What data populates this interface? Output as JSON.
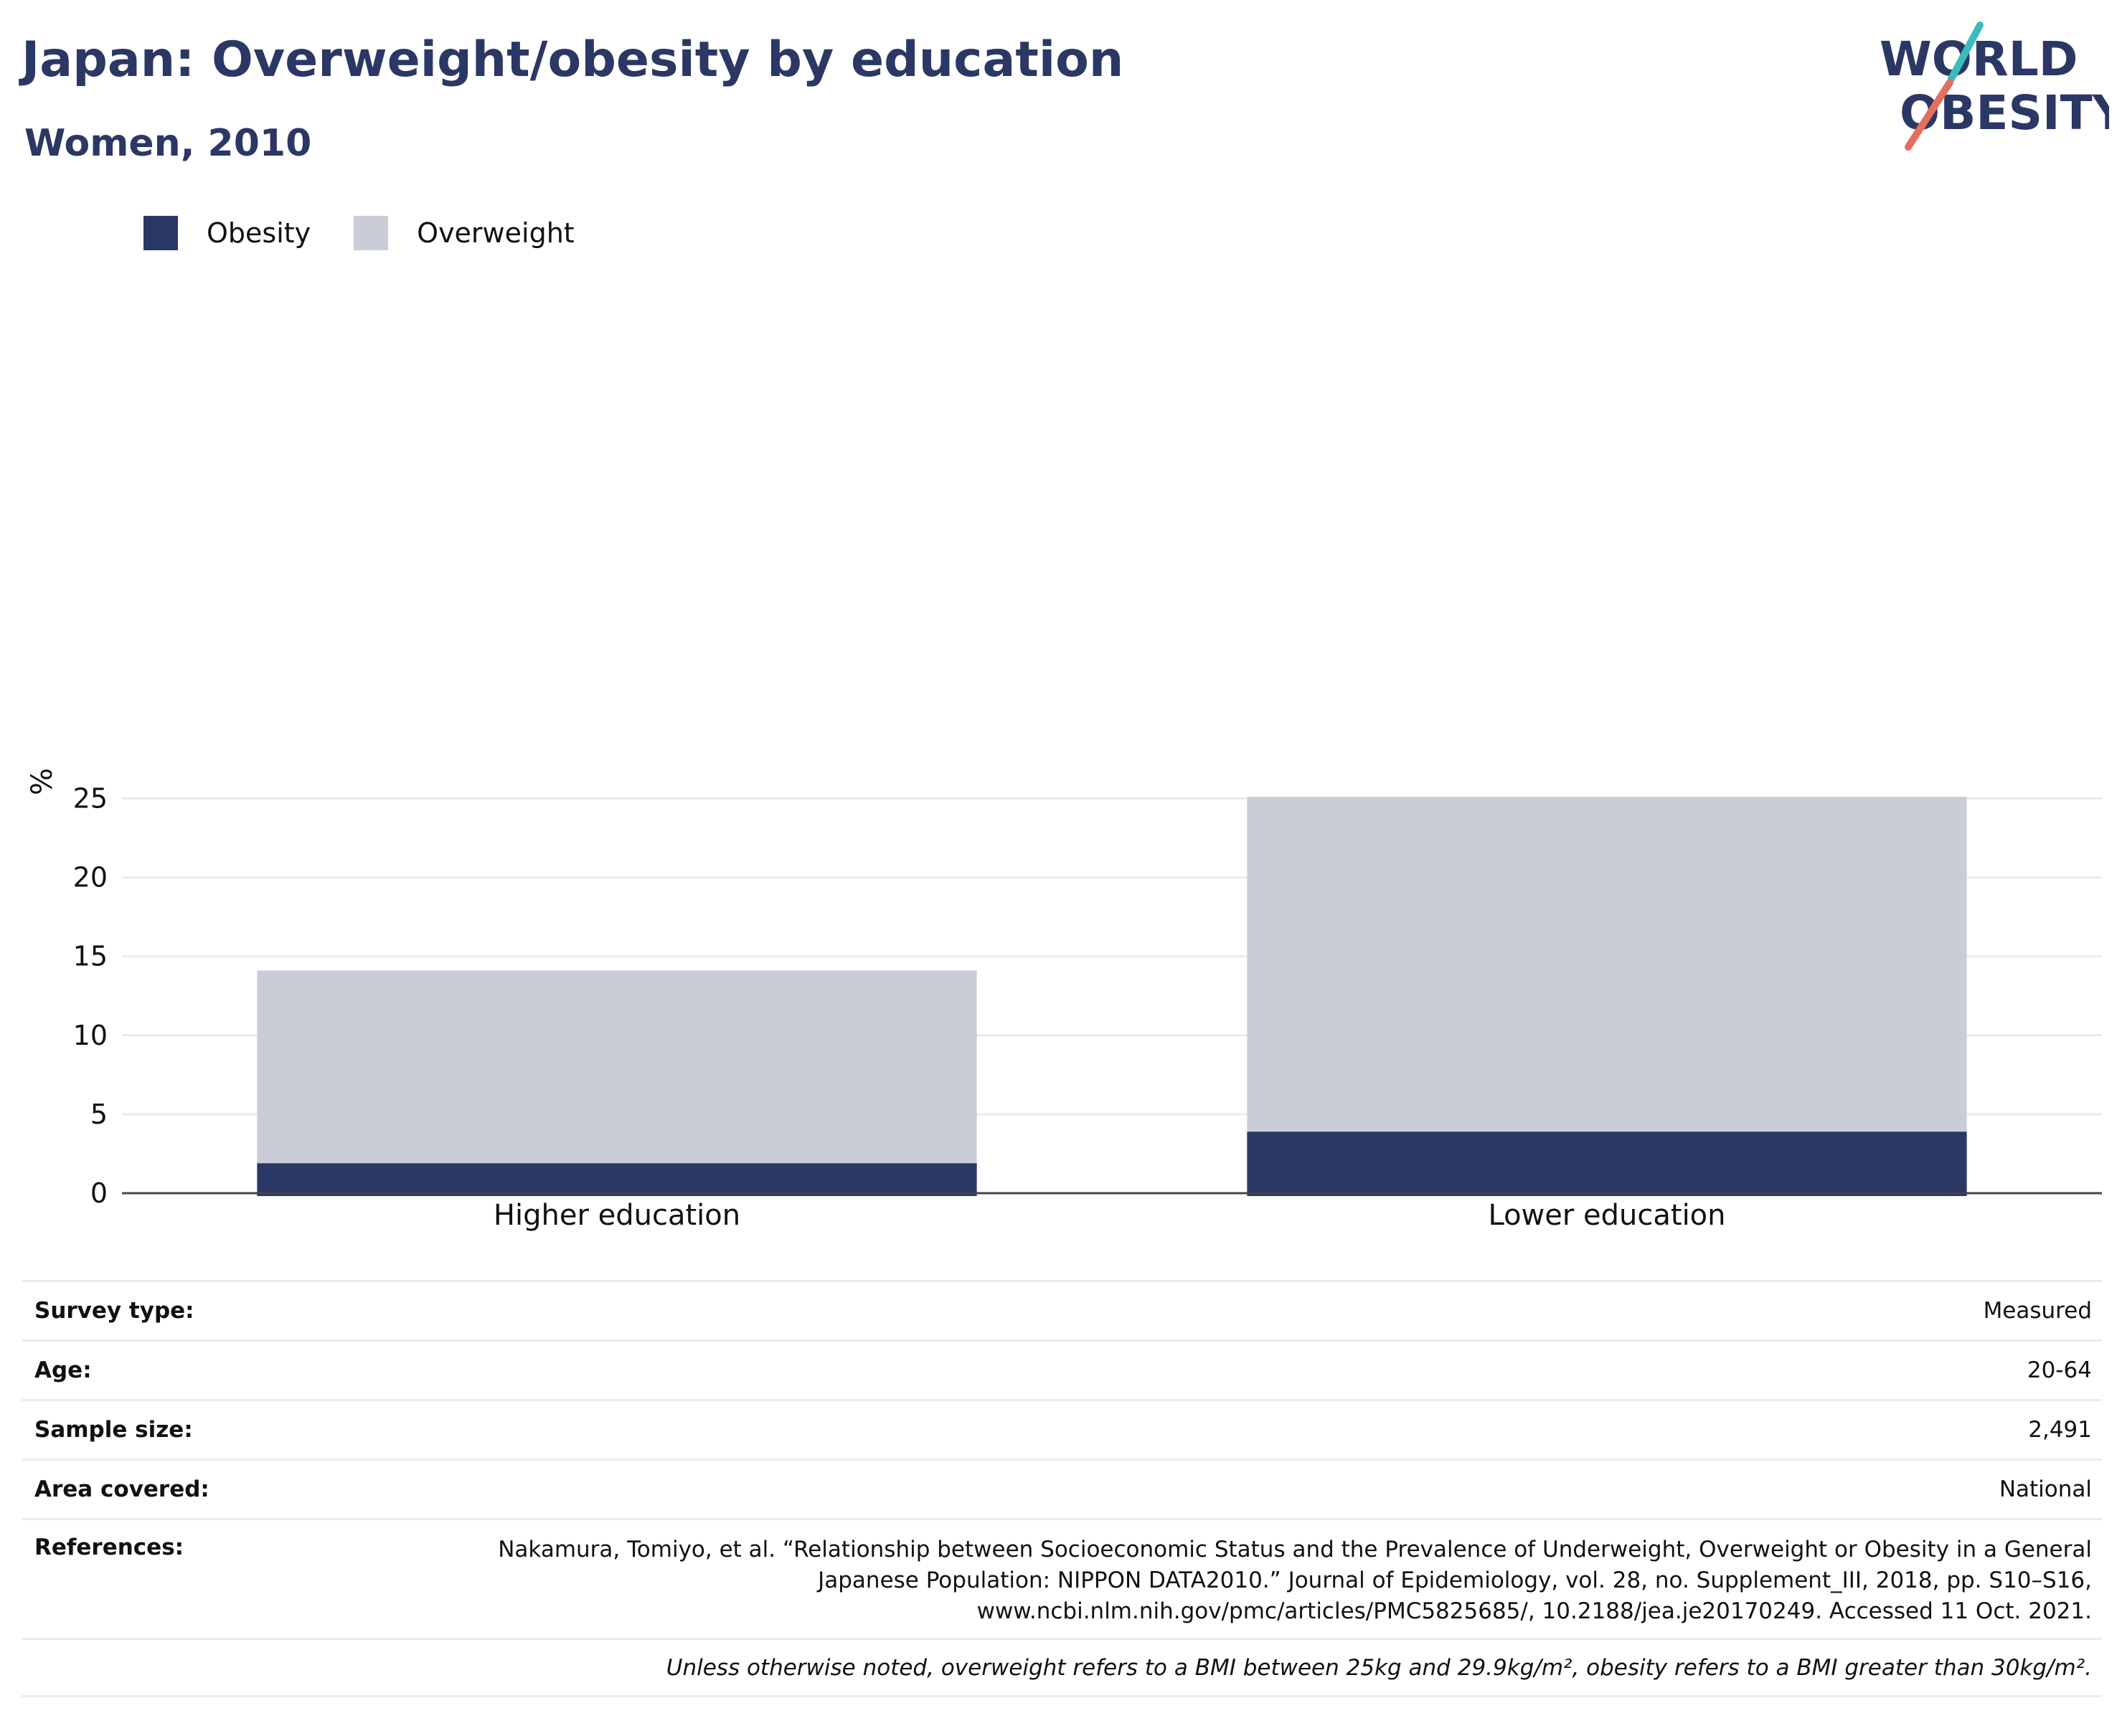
{
  "header": {
    "title": "Japan: Overweight/obesity by education",
    "subtitle": "Women, 2010"
  },
  "logo": {
    "line1": "WORLD",
    "line2": "OBESITY"
  },
  "legend": {
    "items": [
      {
        "label": "Obesity"
      },
      {
        "label": "Overweight"
      }
    ]
  },
  "colors": {
    "obesity": "#2b3764",
    "overweight": "#cacdd8",
    "logo_teal": "#3cbcbc",
    "logo_coral": "#e36f5c"
  },
  "chart_data": {
    "type": "bar",
    "stacked": true,
    "categories": [
      "Higher education",
      "Lower education"
    ],
    "series": [
      {
        "name": "Obesity",
        "values": [
          1.9,
          3.9
        ]
      },
      {
        "name": "Overweight",
        "values": [
          12.2,
          21.2
        ]
      }
    ],
    "ylabel": "%",
    "ylim": [
      0,
      27
    ],
    "yticks": [
      0,
      5,
      10,
      15,
      20,
      25
    ],
    "grid": true,
    "legend_position": "top-left"
  },
  "meta": {
    "survey_type": {
      "label": "Survey type:",
      "value": "Measured"
    },
    "age": {
      "label": "Age:",
      "value": "20-64"
    },
    "sample_size": {
      "label": "Sample size:",
      "value": "2,491"
    },
    "area": {
      "label": "Area covered:",
      "value": "National"
    },
    "references": {
      "label": "References:",
      "value": "Nakamura, Tomiyo, et al. “Relationship between Socioeconomic Status and the Prevalence of Underweight, Overweight or Obesity in a General Japanese Population: NIPPON DATA2010.” Journal of Epidemiology, vol. 28, no. Supplement_III, 2018, pp. S10–S16, www.ncbi.nlm.nih.gov/pmc/articles/PMC5825685/, 10.2188/jea.je20170249. Accessed 11 Oct. 2021."
    }
  },
  "footnote": "Unless otherwise noted, overweight refers to a BMI between 25kg and 29.9kg/m², obesity refers to a BMI greater than 30kg/m²."
}
